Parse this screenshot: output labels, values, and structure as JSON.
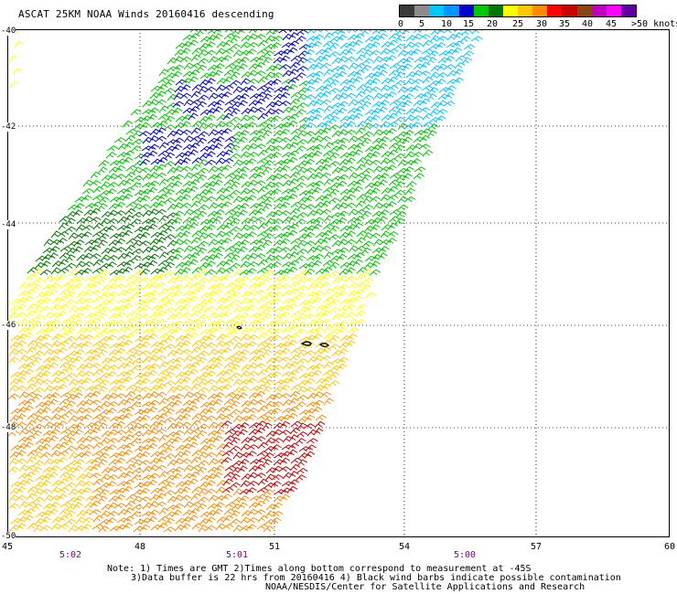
{
  "title": "ASCAT 25KM NOAA Winds 20160416 descending",
  "legend": {
    "colors": [
      "#3a3a3a",
      "#8c8c8c",
      "#00c8ff",
      "#0096ff",
      "#0000d0",
      "#00c800",
      "#007800",
      "#ffff00",
      "#ffc800",
      "#ff8c00",
      "#ff0000",
      "#c80000",
      "#8b4513",
      "#c000c0",
      "#ff00ff",
      "#6000a0"
    ],
    "ticks": [
      "0",
      "5",
      "10",
      "15",
      "20",
      "25",
      "30",
      "35",
      "40",
      "45"
    ],
    "unit": ">50 knots"
  },
  "axes": {
    "lat_labels": [
      "-40",
      "-42",
      "-44",
      "-46",
      "-48",
      "-50"
    ],
    "lon_labels": [
      "45",
      "48",
      "51",
      "54",
      "57",
      "60"
    ]
  },
  "times": [
    "5:02",
    "5:01",
    "5:00"
  ],
  "notes": [
    "Note: 1) Times are GMT 2)Times along bottom correspond to measurement at -45S",
    "3)Data buffer is 22 hrs from 20160416 4) Black wind barbs indicate possible contamination",
    "NOAA/NESDIS/Center for Satellite Applications and Research"
  ]
}
